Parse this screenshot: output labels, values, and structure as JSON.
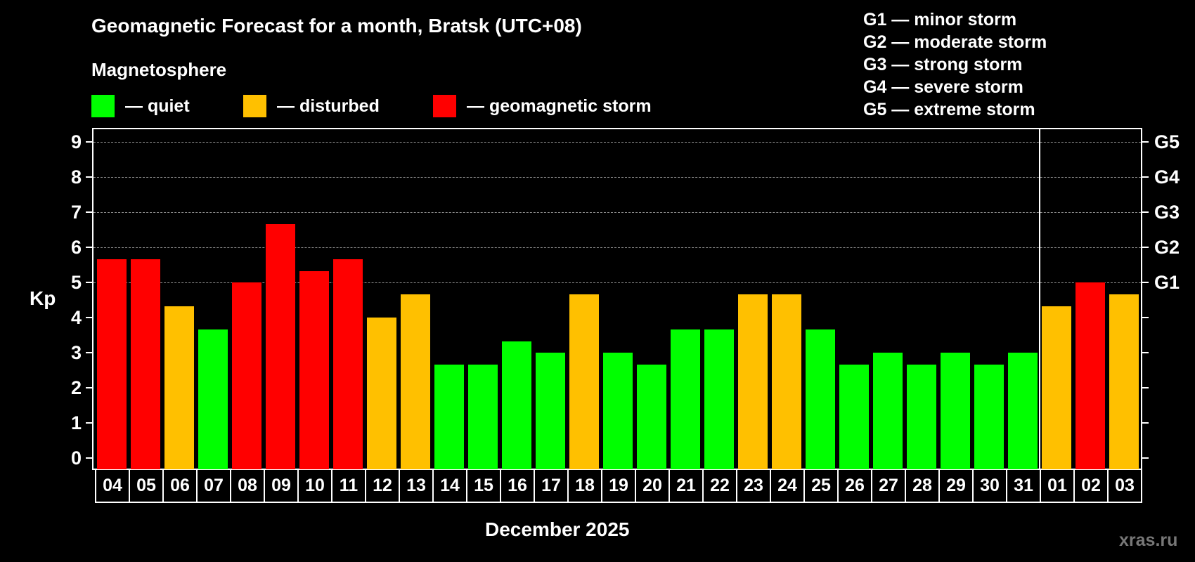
{
  "header": {
    "title": "Geomagnetic Forecast for a month, Bratsk (UTC+08)",
    "subtitle": "Magnetosphere"
  },
  "legend": [
    {
      "label": "— quiet",
      "color": "#00FF00"
    },
    {
      "label": "— disturbed",
      "color": "#FFC000"
    },
    {
      "label": "— geomagnetic storm",
      "color": "#FF0000"
    }
  ],
  "g_legend": [
    "G1 — minor storm",
    "G2 — moderate storm",
    "G3 — strong storm",
    "G4 — severe storm",
    "G5 — extreme storm"
  ],
  "axis": {
    "ylabel": "Kp",
    "xlabel": "December 2025",
    "y_ticks": [
      "0",
      "1",
      "2",
      "3",
      "4",
      "5",
      "6",
      "7",
      "8",
      "9"
    ],
    "g_ticks": [
      {
        "label": "G1",
        "kp": 5
      },
      {
        "label": "G2",
        "kp": 6
      },
      {
        "label": "G3",
        "kp": 7
      },
      {
        "label": "G4",
        "kp": 8
      },
      {
        "label": "G5",
        "kp": 9
      }
    ]
  },
  "watermark": "xras.ru",
  "colors": {
    "quiet": "#00FF00",
    "disturbed": "#FFC000",
    "storm": "#FF0000",
    "background": "#000000",
    "grid": "#8A8A8A",
    "watermark": "#777777"
  },
  "chart_data": {
    "type": "bar",
    "title": "Geomagnetic Forecast for a month, Bratsk (UTC+08)",
    "subtitle": "Magnetosphere",
    "xlabel": "December 2025",
    "ylabel": "Kp",
    "ylim": [
      0,
      9
    ],
    "grid": true,
    "secondary_y_ticks": {
      "5": "G1",
      "6": "G2",
      "7": "G3",
      "8": "G4",
      "9": "G5"
    },
    "legend_position": "top",
    "categories": [
      "04",
      "05",
      "06",
      "07",
      "08",
      "09",
      "10",
      "11",
      "12",
      "13",
      "14",
      "15",
      "16",
      "17",
      "18",
      "19",
      "20",
      "21",
      "22",
      "23",
      "24",
      "25",
      "26",
      "27",
      "28",
      "29",
      "30",
      "31",
      "01",
      "02",
      "03"
    ],
    "values": [
      5.67,
      5.67,
      4.33,
      3.67,
      5.0,
      6.67,
      5.33,
      5.67,
      4.0,
      4.67,
      2.67,
      2.67,
      3.33,
      3.0,
      4.67,
      3.0,
      2.67,
      3.67,
      3.67,
      4.67,
      4.67,
      3.67,
      2.67,
      3.0,
      2.67,
      3.0,
      2.67,
      3.0,
      4.33,
      5.0,
      4.67
    ],
    "status": [
      "storm",
      "storm",
      "disturbed",
      "quiet",
      "storm",
      "storm",
      "storm",
      "storm",
      "disturbed",
      "disturbed",
      "quiet",
      "quiet",
      "quiet",
      "quiet",
      "disturbed",
      "quiet",
      "quiet",
      "quiet",
      "quiet",
      "disturbed",
      "disturbed",
      "quiet",
      "quiet",
      "quiet",
      "quiet",
      "quiet",
      "quiet",
      "quiet",
      "disturbed",
      "storm",
      "disturbed"
    ],
    "month_divider_before": "01"
  }
}
